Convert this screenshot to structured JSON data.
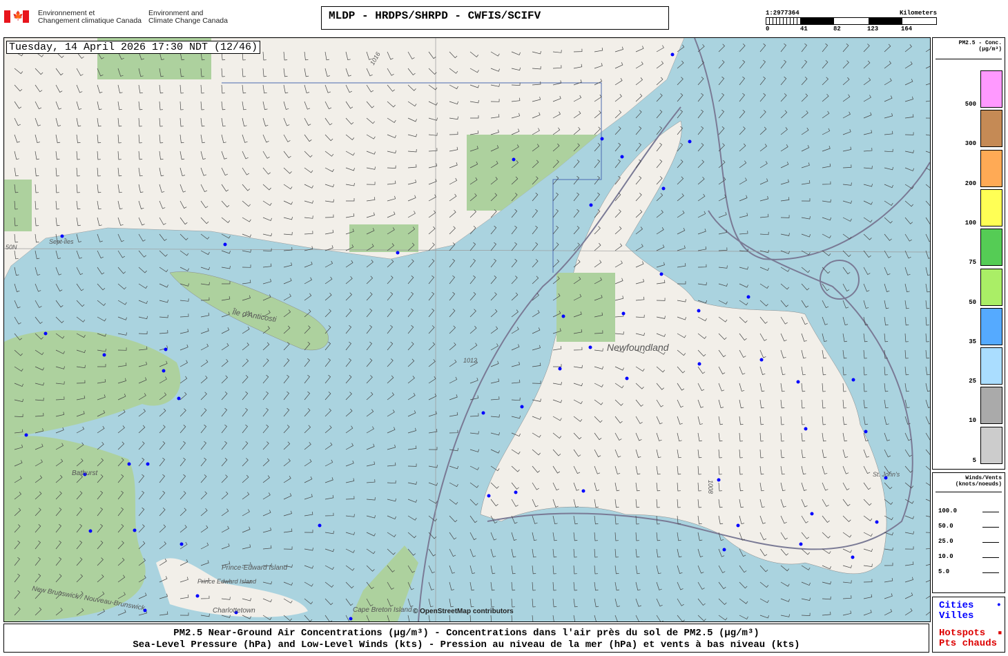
{
  "header": {
    "agency_fr": [
      "Environnement et",
      "Changement climatique Canada"
    ],
    "agency_en": [
      "Environment and",
      "Climate Change Canada"
    ],
    "title": "MLDP - HRDPS/SHRPD - CWFIS/SCIFV"
  },
  "scale": {
    "ratio": "1:2977364",
    "unit": "Kilometers",
    "ticks": [
      "0",
      "41",
      "82",
      "123",
      "164"
    ]
  },
  "map": {
    "datetime": "Tuesday, 14 April 2026 17:30 NDT (12/46)",
    "attribution": "© OpenStreetMap contributors",
    "labels": [
      "Sept-Îles",
      "Île d'Anticosti",
      "Newfoundland",
      "Bathurst",
      "Prince Edward Island",
      "Prince-Edward Island",
      "Charlottetown",
      "Cape Breton Island",
      "St. John's",
      "New Brunswick / Nouveau-Brunswick",
      "50N"
    ],
    "isobars": [
      "1016",
      "1012",
      "1008"
    ],
    "land_color": "#f2efe9",
    "forest_color": "#add19e",
    "water_color": "#aad3df"
  },
  "legend": {
    "title": "PM2.5 - Conc.",
    "unit": "(µg/m³)",
    "bins": [
      {
        "label": "500",
        "color": "#ff99ff"
      },
      {
        "label": "300",
        "color": "#c58a55"
      },
      {
        "label": "200",
        "color": "#ffaa55"
      },
      {
        "label": "100",
        "color": "#ffff55"
      },
      {
        "label": "75",
        "color": "#55cc55"
      },
      {
        "label": "50",
        "color": "#aaee66"
      },
      {
        "label": "35",
        "color": "#55aaff"
      },
      {
        "label": "25",
        "color": "#aaddff"
      },
      {
        "label": "10",
        "color": "#aaaaaa"
      },
      {
        "label": "5",
        "color": "#cccccc"
      }
    ]
  },
  "winds": {
    "title": "Winds/Vents",
    "unit": "(knots/noeuds)",
    "speeds": [
      "100.0",
      "50.0",
      "25.0",
      "10.0",
      "5.0"
    ]
  },
  "cities": {
    "en": "Cities",
    "fr": "Villes",
    "hot_en": "Hotspots",
    "hot_fr": "Pts chauds",
    "city_color": "#0000ff",
    "hotspot_color": "#dd0000"
  },
  "caption": {
    "line1": "PM2.5 Near-Ground Air Concentrations (µg/m³) - Concentrations dans l'air près du sol de PM2.5 (µg/m³)",
    "line2": "Sea-Level Pressure (hPa) and Low-Level Winds (kts) - Pression au niveau de la mer (hPa) et vents à bas niveau (kts)"
  }
}
